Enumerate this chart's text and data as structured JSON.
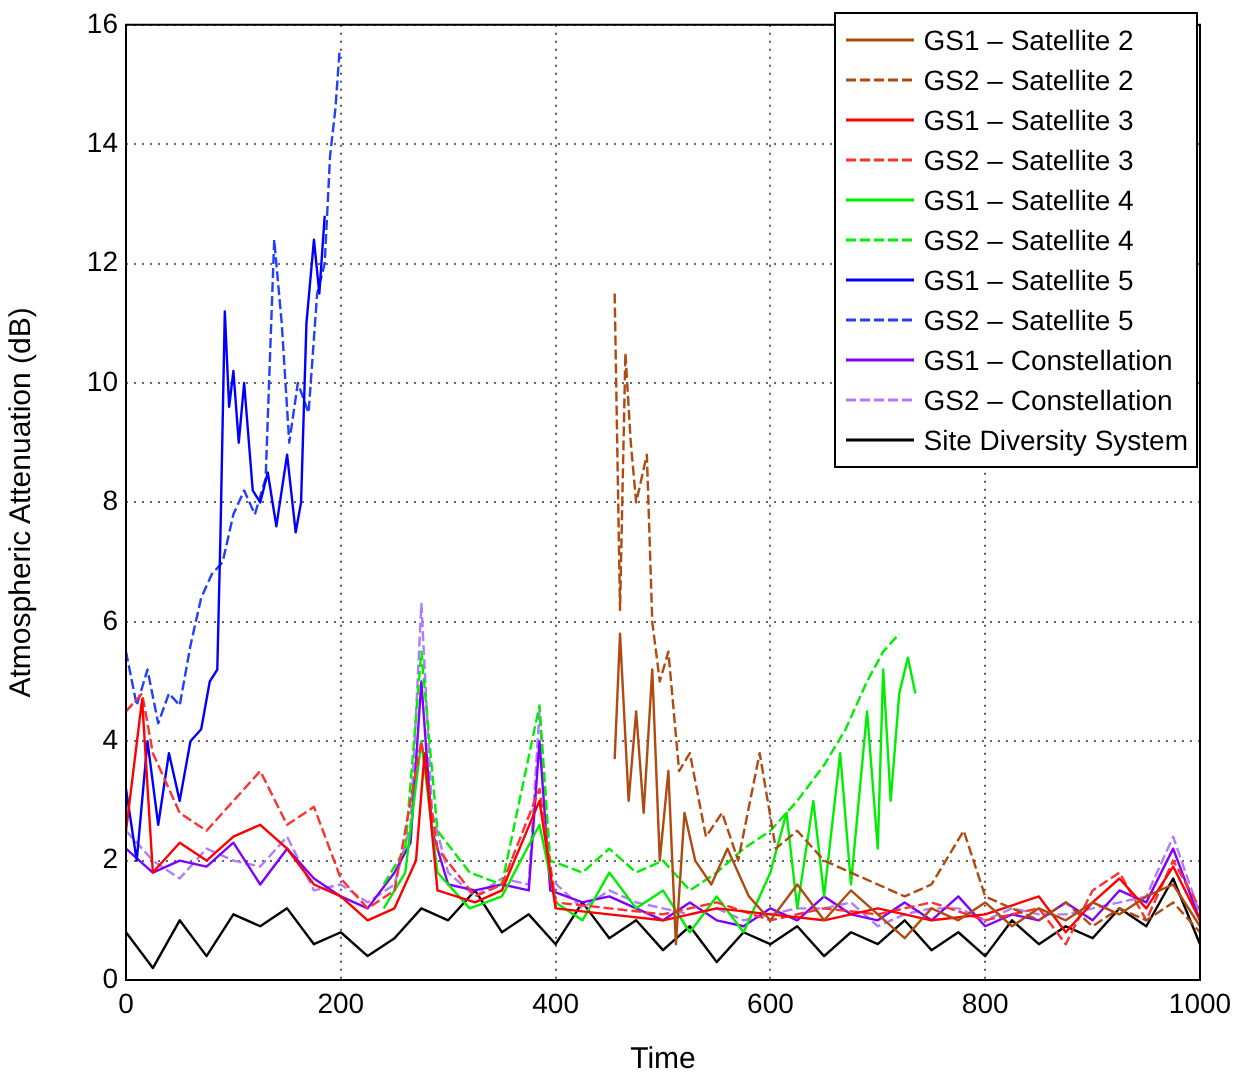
{
  "chart_data": {
    "type": "line",
    "xlabel": "Time",
    "ylabel": "Atmospheric Attenuation (dB)",
    "xlim": [
      0,
      1000
    ],
    "xticks": [
      0,
      200,
      400,
      600,
      800,
      1000
    ],
    "ylim": [
      0,
      16
    ],
    "yticks": [
      0,
      2,
      4,
      6,
      8,
      10,
      12,
      14,
      16
    ],
    "grid": true,
    "legend": "top right",
    "series": [
      {
        "name": "GS1 – Satellite 2",
        "color": "#b04a10",
        "line_style": "solid",
        "x": [
          455,
          460,
          468,
          475,
          482,
          490,
          497,
          505,
          512,
          520,
          530,
          545,
          560,
          580,
          600,
          625,
          650,
          675,
          700,
          725,
          750,
          775,
          800,
          825,
          850,
          875,
          900,
          925,
          950,
          975,
          1000
        ],
        "values": [
          3.7,
          5.8,
          3.0,
          4.5,
          2.8,
          5.2,
          2.0,
          3.5,
          0.6,
          2.8,
          2.0,
          1.6,
          2.2,
          1.4,
          1.0,
          1.6,
          1.0,
          1.5,
          1.1,
          0.7,
          1.2,
          1.0,
          1.3,
          0.9,
          1.2,
          1.0,
          1.3,
          1.1,
          1.4,
          1.6,
          0.9
        ]
      },
      {
        "name": "GS2 – Satellite 2",
        "color": "#b04a10",
        "line_style": "dashed",
        "x": [
          455,
          460,
          465,
          470,
          475,
          485,
          490,
          497,
          505,
          515,
          525,
          540,
          555,
          570,
          590,
          605,
          625,
          650,
          675,
          700,
          725,
          750,
          780,
          800,
          825,
          850,
          875,
          900,
          925,
          950,
          975,
          1000
        ],
        "values": [
          11.5,
          6.2,
          10.5,
          9.0,
          8.0,
          8.8,
          6.0,
          5.0,
          5.5,
          3.5,
          3.8,
          2.4,
          2.8,
          2.0,
          3.8,
          2.2,
          2.5,
          2.0,
          1.8,
          1.6,
          1.4,
          1.6,
          2.5,
          1.4,
          1.2,
          1.0,
          1.3,
          0.9,
          1.2,
          1.0,
          1.3,
          0.8
        ]
      },
      {
        "name": "GS1 – Satellite 3",
        "color": "#ff0000",
        "line_style": "solid",
        "x": [
          0,
          15,
          25,
          50,
          75,
          100,
          125,
          150,
          175,
          200,
          225,
          250,
          270,
          278,
          290,
          325,
          350,
          385,
          400,
          450,
          500,
          550,
          600,
          650,
          700,
          750,
          800,
          850,
          875,
          900,
          925,
          950,
          975,
          1000
        ],
        "values": [
          2.5,
          4.7,
          1.8,
          2.3,
          2.0,
          2.4,
          2.6,
          2.2,
          1.6,
          1.4,
          1.0,
          1.2,
          2.0,
          3.8,
          1.5,
          1.3,
          1.5,
          3.0,
          1.2,
          1.1,
          1.0,
          1.2,
          1.1,
          1.0,
          1.2,
          1.0,
          1.1,
          1.4,
          0.8,
          1.3,
          1.7,
          1.2,
          1.9,
          1.0
        ]
      },
      {
        "name": "GS2 – Satellite 3",
        "color": "#ff3030",
        "line_style": "dashed",
        "x": [
          0,
          15,
          25,
          50,
          75,
          100,
          125,
          150,
          175,
          200,
          225,
          250,
          275,
          290,
          325,
          350,
          385,
          400,
          450,
          500,
          550,
          600,
          650,
          700,
          750,
          800,
          850,
          875,
          900,
          925,
          950,
          975,
          1000
        ],
        "values": [
          4.5,
          4.8,
          3.8,
          2.8,
          2.5,
          3.0,
          3.5,
          2.6,
          2.9,
          1.7,
          1.2,
          1.5,
          4.0,
          2.2,
          1.4,
          1.6,
          3.2,
          1.3,
          1.2,
          1.1,
          1.3,
          1.0,
          1.2,
          1.1,
          1.3,
          1.0,
          1.2,
          0.6,
          1.5,
          1.8,
          1.0,
          2.0,
          1.2
        ]
      },
      {
        "name": "GS1 – Satellite 4",
        "color": "#00ee00",
        "line_style": "solid",
        "x": [
          240,
          260,
          275,
          290,
          320,
          350,
          385,
          400,
          425,
          450,
          475,
          500,
          525,
          550,
          575,
          600,
          615,
          625,
          640,
          650,
          665,
          675,
          690,
          700,
          705,
          712,
          720,
          728,
          735
        ],
        "values": [
          1.2,
          1.8,
          4.0,
          1.8,
          1.2,
          1.4,
          2.6,
          1.3,
          1.0,
          1.8,
          1.2,
          1.5,
          0.8,
          1.4,
          0.8,
          1.8,
          2.8,
          1.2,
          3.0,
          1.4,
          3.8,
          1.6,
          4.5,
          2.2,
          5.2,
          3.0,
          4.8,
          5.4,
          4.8
        ]
      },
      {
        "name": "GS2 – Satellite 4",
        "color": "#00ee00",
        "line_style": "dashed",
        "x": [
          240,
          260,
          275,
          290,
          320,
          350,
          385,
          395,
          425,
          450,
          475,
          500,
          525,
          550,
          575,
          600,
          625,
          650,
          670,
          690,
          705,
          720
        ],
        "values": [
          1.6,
          2.2,
          5.5,
          2.5,
          1.8,
          1.6,
          4.6,
          2.0,
          1.8,
          2.2,
          1.8,
          2.0,
          1.5,
          1.8,
          2.2,
          2.5,
          3.0,
          3.6,
          4.2,
          5.0,
          5.5,
          5.8
        ]
      },
      {
        "name": "GS1 – Satellite 5",
        "color": "#0000ff",
        "line_style": "solid",
        "x": [
          0,
          10,
          20,
          30,
          40,
          50,
          60,
          70,
          78,
          85,
          88,
          92,
          96,
          100,
          105,
          110,
          118,
          125,
          132,
          140,
          150,
          158,
          163,
          168,
          175,
          180,
          185
        ],
        "values": [
          3.2,
          2.0,
          4.0,
          2.6,
          3.8,
          3.0,
          4.0,
          4.2,
          5.0,
          5.2,
          7.5,
          11.2,
          9.6,
          10.2,
          9.0,
          10.0,
          8.2,
          8.0,
          8.5,
          7.6,
          8.8,
          7.5,
          8.0,
          11.0,
          12.4,
          11.5,
          12.8
        ]
      },
      {
        "name": "GS2 – Satellite 5",
        "color": "#2040ff",
        "line_style": "dashed",
        "x": [
          0,
          10,
          20,
          30,
          40,
          50,
          60,
          70,
          80,
          90,
          100,
          110,
          120,
          130,
          138,
          145,
          152,
          160,
          170,
          178,
          185,
          190,
          195,
          199
        ],
        "values": [
          5.5,
          4.6,
          5.2,
          4.3,
          4.8,
          4.6,
          5.6,
          6.4,
          6.8,
          7.0,
          7.8,
          8.2,
          7.8,
          8.4,
          12.4,
          11.0,
          9.0,
          10.0,
          9.5,
          11.5,
          12.0,
          13.8,
          14.6,
          15.6
        ]
      },
      {
        "name": "GS1 – Constellation",
        "color": "#7f00ff",
        "line_style": "solid",
        "x": [
          0,
          25,
          50,
          75,
          100,
          125,
          150,
          175,
          200,
          225,
          250,
          265,
          275,
          285,
          300,
          325,
          350,
          375,
          385,
          395,
          425,
          450,
          475,
          500,
          525,
          550,
          575,
          600,
          625,
          650,
          675,
          700,
          725,
          750,
          775,
          800,
          825,
          850,
          875,
          900,
          925,
          950,
          975,
          1000
        ],
        "values": [
          2.2,
          1.8,
          2.0,
          1.9,
          2.3,
          1.6,
          2.2,
          1.7,
          1.4,
          1.2,
          1.8,
          2.3,
          5.0,
          2.5,
          1.6,
          1.5,
          1.6,
          1.5,
          4.0,
          1.5,
          1.3,
          1.4,
          1.2,
          1.0,
          1.3,
          1.0,
          0.9,
          1.2,
          1.0,
          1.4,
          1.1,
          1.0,
          1.3,
          1.0,
          1.4,
          0.9,
          1.1,
          1.0,
          1.3,
          1.0,
          1.5,
          1.3,
          2.2,
          1.0
        ]
      },
      {
        "name": "GS2 – Constellation",
        "color": "#b07cff",
        "line_style": "dashed",
        "x": [
          0,
          25,
          50,
          75,
          100,
          125,
          150,
          175,
          200,
          225,
          250,
          265,
          275,
          285,
          300,
          325,
          350,
          375,
          385,
          395,
          425,
          450,
          475,
          500,
          525,
          550,
          575,
          600,
          625,
          650,
          675,
          700,
          725,
          750,
          775,
          800,
          825,
          850,
          875,
          900,
          925,
          950,
          975,
          1000
        ],
        "values": [
          2.5,
          2.0,
          1.7,
          2.2,
          2.0,
          1.9,
          2.4,
          1.5,
          1.6,
          1.3,
          1.6,
          2.6,
          6.3,
          2.8,
          1.8,
          1.4,
          1.7,
          1.6,
          4.5,
          1.7,
          1.2,
          1.5,
          1.3,
          1.2,
          1.1,
          1.2,
          1.0,
          1.1,
          1.2,
          1.2,
          1.3,
          0.9,
          1.1,
          1.2,
          1.2,
          1.0,
          1.2,
          1.1,
          1.1,
          1.2,
          1.3,
          1.4,
          2.4,
          1.1
        ]
      },
      {
        "name": "Site Diversity System",
        "color": "#000000",
        "line_style": "solid",
        "x": [
          0,
          25,
          50,
          75,
          100,
          125,
          150,
          175,
          200,
          225,
          250,
          275,
          300,
          325,
          350,
          375,
          400,
          425,
          450,
          475,
          500,
          525,
          550,
          575,
          600,
          625,
          650,
          675,
          700,
          725,
          750,
          775,
          800,
          825,
          850,
          875,
          900,
          925,
          950,
          975,
          1000
        ],
        "values": [
          0.8,
          0.2,
          1.0,
          0.4,
          1.1,
          0.9,
          1.2,
          0.6,
          0.8,
          0.4,
          0.7,
          1.2,
          1.0,
          1.5,
          0.8,
          1.1,
          0.6,
          1.3,
          0.7,
          1.0,
          0.5,
          0.9,
          0.3,
          0.8,
          0.6,
          0.9,
          0.4,
          0.8,
          0.6,
          1.0,
          0.5,
          0.8,
          0.4,
          1.0,
          0.6,
          0.9,
          0.7,
          1.2,
          0.9,
          1.7,
          0.6
        ]
      }
    ]
  }
}
